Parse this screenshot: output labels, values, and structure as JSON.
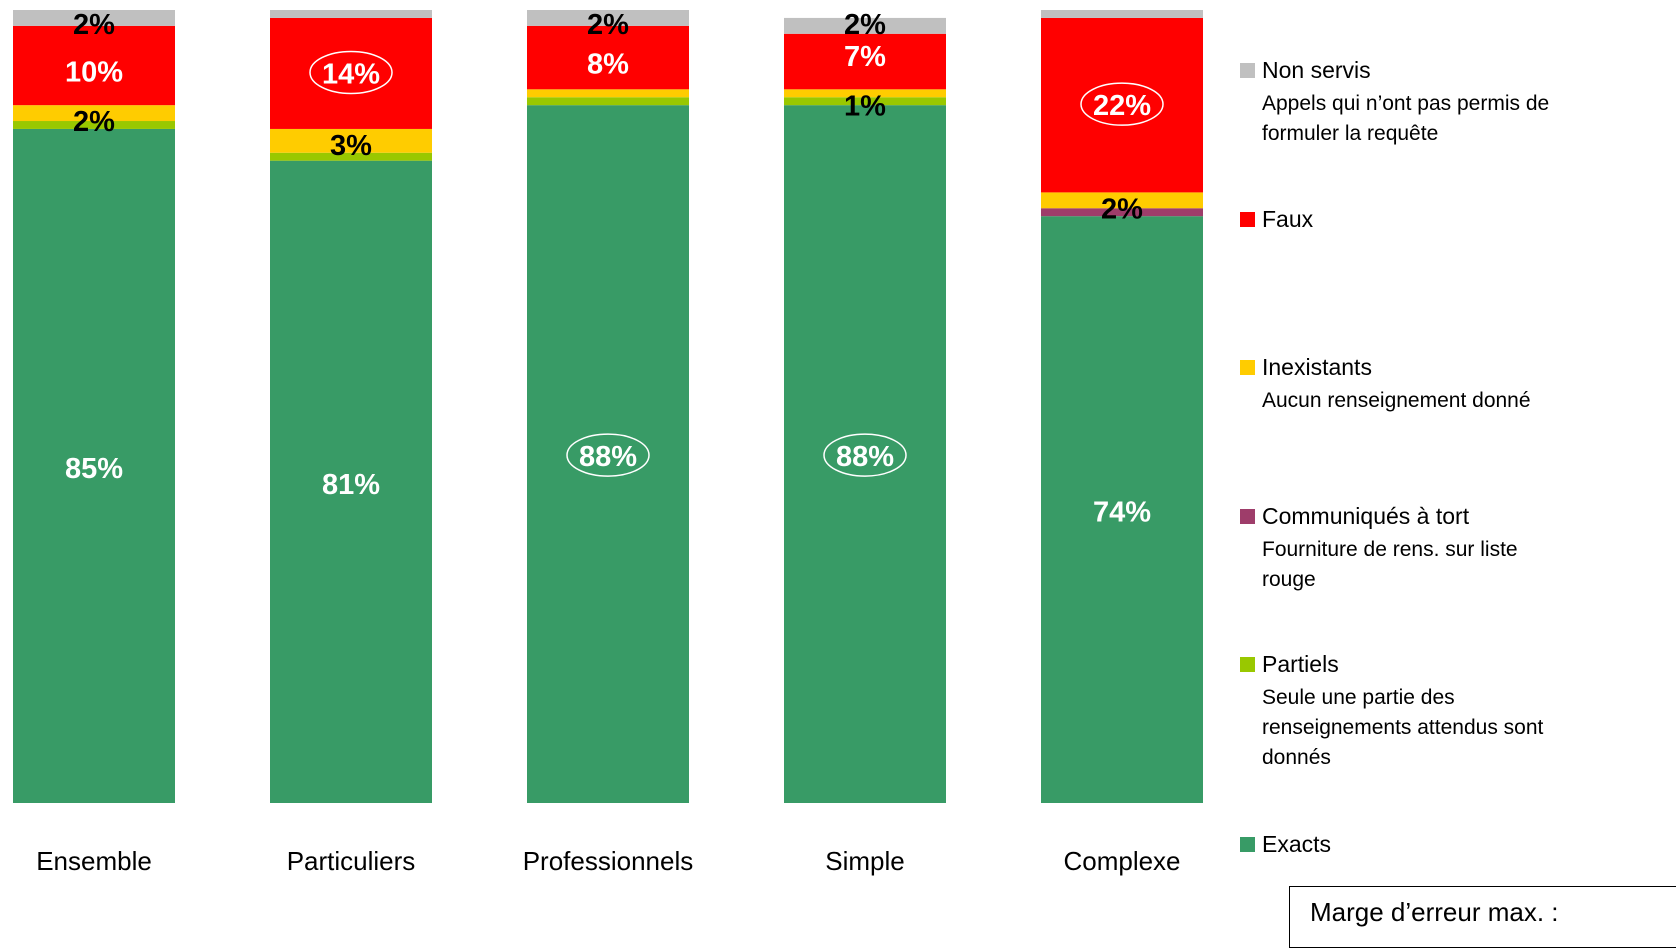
{
  "chart_data": {
    "type": "bar",
    "stacked": true,
    "categories": [
      "Ensemble",
      "Particuliers",
      "Professionnels",
      "Simple",
      "Complexe"
    ],
    "series": [
      {
        "name": "Exacts",
        "color": "#389B66",
        "values": [
          85,
          81,
          88,
          88,
          74
        ],
        "labels": [
          "85%",
          "81%",
          "88%",
          "88%",
          "74%"
        ],
        "circled": [
          false,
          false,
          true,
          true,
          false
        ]
      },
      {
        "name": "Partiels",
        "color": "#99C800",
        "values": [
          1,
          1,
          1,
          1,
          0
        ],
        "labels": [
          "",
          "",
          "",
          "",
          ""
        ],
        "circled": [
          false,
          false,
          false,
          false,
          false
        ]
      },
      {
        "name": "Communiqués à tort",
        "color": "#9E3D6A",
        "values": [
          0,
          0,
          0,
          0,
          1
        ],
        "labels": [
          "",
          "",
          "",
          "",
          ""
        ],
        "circled": [
          false,
          false,
          false,
          false,
          false
        ]
      },
      {
        "name": "Inexistants",
        "color": "#FFCC00",
        "values": [
          2,
          3,
          1,
          1,
          2
        ],
        "labels": [
          "2%",
          "3%",
          "",
          "1%",
          "2%"
        ],
        "circled": [
          false,
          false,
          false,
          false,
          false
        ]
      },
      {
        "name": "Faux",
        "color": "#FF0000",
        "values": [
          10,
          14,
          8,
          7,
          22
        ],
        "labels": [
          "10%",
          "14%",
          "8%",
          "7%",
          "22%"
        ],
        "circled": [
          false,
          true,
          false,
          false,
          true
        ]
      },
      {
        "name": "Non servis",
        "color": "#C0C0C0",
        "values": [
          2,
          1,
          2,
          2,
          1
        ],
        "labels": [
          "2%",
          "",
          "2%",
          "2%",
          ""
        ],
        "circled": [
          false,
          false,
          false,
          false,
          false
        ]
      }
    ],
    "ylim": [
      0,
      100
    ],
    "grid": false,
    "legend_position": "right",
    "title": "",
    "xlabel": "",
    "ylabel": ""
  },
  "legend": {
    "items": [
      {
        "label": "Non servis",
        "color": "#C0C0C0",
        "desc": "Appels qui n’ont pas permis de formuler la requête"
      },
      {
        "label": "Faux",
        "color": "#FF0000",
        "desc": ""
      },
      {
        "label": "Inexistants",
        "color": "#FFCC00",
        "desc": "Aucun renseignement donné"
      },
      {
        "label": "Communiqués à tort",
        "color": "#9E3D6A",
        "desc": "Fourniture de rens. sur liste rouge"
      },
      {
        "label": "Partiels",
        "color": "#99C800",
        "desc": "Seule une partie des renseignements attendus sont donnés"
      },
      {
        "label": "Exacts",
        "color": "#389B66",
        "desc": ""
      }
    ]
  },
  "note": {
    "text": "Marge d’erreur max. :"
  }
}
